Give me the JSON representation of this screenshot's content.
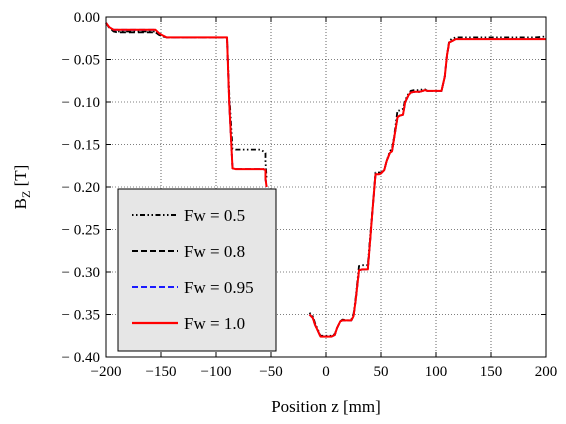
{
  "chart_data": {
    "type": "line",
    "xlabel": "Position z [mm]",
    "ylabel_main": "B",
    "ylabel_sub": "Z",
    "ylabel_unit": " [T]",
    "xlim": [
      -200,
      200
    ],
    "ylim": [
      -0.4,
      0.0
    ],
    "xticks": [
      -200,
      -150,
      -100,
      -50,
      0,
      50,
      100,
      150,
      200
    ],
    "xtick_labels": [
      "−200",
      "−150",
      "−100",
      "−50",
      "0",
      "50",
      "100",
      "150",
      "200"
    ],
    "yticks": [
      0.0,
      -0.05,
      -0.1,
      -0.15,
      -0.2,
      -0.25,
      -0.3,
      -0.35,
      -0.4
    ],
    "ytick_labels": [
      "0.00",
      "− 0.05",
      "− 0.10",
      "− 0.15",
      "− 0.20",
      "− 0.25",
      "− 0.30",
      "− 0.35",
      "− 0.40"
    ],
    "grid": true,
    "legend_position": "lower-left",
    "series": [
      {
        "name": "Fw = 0.5",
        "color": "#000000",
        "dash": "dashdotdot",
        "x": [
          -200,
          -197,
          -193,
          -190,
          -180,
          -155,
          -152,
          -148,
          -145,
          -140,
          -110,
          -95,
          -90,
          -88,
          -85,
          -82,
          -78,
          -60,
          -57,
          -55,
          -55,
          -54
        ],
        "y": [
          -0.007,
          -0.012,
          -0.016,
          -0.017,
          -0.017,
          -0.017,
          -0.02,
          -0.023,
          -0.024,
          -0.024,
          -0.024,
          -0.024,
          -0.024,
          -0.09,
          -0.155,
          -0.156,
          -0.156,
          -0.156,
          -0.158,
          -0.16,
          -0.17,
          -0.19
        ]
      },
      {
        "name": "Fw = 0.8",
        "color": "#000000",
        "dash": "dashed",
        "x": [
          -200,
          -197,
          -193,
          -190,
          -180,
          -155,
          -152,
          -148,
          -145,
          -140,
          -110,
          -95,
          -90,
          -88,
          -85,
          -82,
          -78,
          -60,
          -57,
          -55,
          -55,
          -54
        ],
        "y": [
          -0.007,
          -0.013,
          -0.017,
          -0.018,
          -0.018,
          -0.018,
          -0.021,
          -0.023,
          -0.024,
          -0.024,
          -0.024,
          -0.024,
          -0.024,
          -0.1,
          -0.178,
          -0.179,
          -0.179,
          -0.179,
          -0.179,
          -0.18,
          -0.19,
          -0.2
        ]
      },
      {
        "name": "Fw = 0.95",
        "color": "#1a1aff",
        "dash": "dashed",
        "x": [
          -200,
          -197,
          -193,
          -190,
          -180,
          -155,
          -152,
          -148,
          -145,
          -140,
          -110,
          -95,
          -90,
          -88,
          -85,
          -82,
          -78,
          -60,
          -57,
          -55,
          -55,
          -54
        ],
        "y": [
          -0.007,
          -0.012,
          -0.015,
          -0.015,
          -0.015,
          -0.015,
          -0.019,
          -0.022,
          -0.024,
          -0.024,
          -0.024,
          -0.024,
          -0.024,
          -0.1,
          -0.178,
          -0.179,
          -0.179,
          -0.179,
          -0.179,
          -0.18,
          -0.19,
          -0.2
        ]
      },
      {
        "name": "Fw = 1.0",
        "color": "#ff0000",
        "dash": "solid",
        "x": [
          -200,
          -197,
          -193,
          -190,
          -180,
          -155,
          -152,
          -148,
          -145,
          -140,
          -110,
          -95,
          -90,
          -88,
          -85,
          -82,
          -78,
          -60,
          -57,
          -55,
          -55,
          -54
        ],
        "y": [
          -0.007,
          -0.012,
          -0.015,
          -0.015,
          -0.015,
          -0.015,
          -0.019,
          -0.022,
          -0.024,
          -0.024,
          -0.024,
          -0.024,
          -0.024,
          -0.1,
          -0.178,
          -0.179,
          -0.179,
          -0.179,
          -0.179,
          -0.18,
          -0.19,
          -0.2
        ]
      },
      {
        "name": "",
        "color": "#000000",
        "dash": "dashdotdot",
        "x": [
          -15,
          -12,
          -10,
          -5,
          0,
          5,
          8,
          10,
          13,
          15,
          20,
          23,
          25,
          27,
          30,
          33,
          35,
          38,
          40,
          42,
          45,
          46,
          48,
          50,
          53,
          55,
          58,
          60,
          62,
          65,
          67,
          70,
          72,
          75,
          77,
          80,
          82,
          85,
          88,
          90,
          92,
          95,
          100,
          105,
          108,
          110,
          112,
          115,
          118,
          120,
          125,
          130,
          140,
          150,
          170,
          190,
          200
        ],
        "y": [
          -0.348,
          -0.352,
          -0.36,
          -0.375,
          -0.375,
          -0.375,
          -0.373,
          -0.366,
          -0.358,
          -0.356,
          -0.357,
          -0.356,
          -0.35,
          -0.33,
          -0.293,
          -0.292,
          -0.292,
          -0.292,
          -0.26,
          -0.23,
          -0.183,
          -0.183,
          -0.183,
          -0.183,
          -0.18,
          -0.17,
          -0.158,
          -0.155,
          -0.14,
          -0.11,
          -0.11,
          -0.108,
          -0.098,
          -0.09,
          -0.087,
          -0.086,
          -0.086,
          -0.086,
          -0.085,
          -0.085,
          -0.087,
          -0.087,
          -0.087,
          -0.087,
          -0.07,
          -0.045,
          -0.028,
          -0.025,
          -0.024,
          -0.024,
          -0.024,
          -0.024,
          -0.024,
          -0.024,
          -0.024,
          -0.024,
          -0.023
        ]
      },
      {
        "name": "",
        "color": "#000000",
        "dash": "dashed",
        "x": [
          -15,
          -12,
          -10,
          -5,
          0,
          5,
          8,
          10,
          13,
          15,
          20,
          23,
          25,
          27,
          30,
          33,
          35,
          38,
          40,
          42,
          45,
          46,
          48,
          50,
          53,
          55,
          58,
          60,
          62,
          65,
          67,
          70,
          72,
          75,
          77,
          80,
          82,
          85,
          88,
          90,
          92,
          95,
          100,
          105,
          108,
          110,
          112,
          115,
          118,
          120,
          125,
          130,
          140,
          150,
          170,
          190,
          200
        ],
        "y": [
          -0.35,
          -0.354,
          -0.362,
          -0.376,
          -0.376,
          -0.376,
          -0.374,
          -0.366,
          -0.358,
          -0.357,
          -0.357,
          -0.357,
          -0.352,
          -0.333,
          -0.298,
          -0.297,
          -0.297,
          -0.297,
          -0.265,
          -0.232,
          -0.185,
          -0.185,
          -0.185,
          -0.184,
          -0.18,
          -0.17,
          -0.16,
          -0.158,
          -0.142,
          -0.118,
          -0.116,
          -0.115,
          -0.1,
          -0.092,
          -0.089,
          -0.088,
          -0.088,
          -0.088,
          -0.087,
          -0.086,
          -0.087,
          -0.087,
          -0.087,
          -0.087,
          -0.07,
          -0.045,
          -0.03,
          -0.028,
          -0.026,
          -0.026,
          -0.026,
          -0.026,
          -0.026,
          -0.026,
          -0.026,
          -0.026,
          -0.026
        ]
      },
      {
        "name": "",
        "color": "#1a1aff",
        "dash": "dashed",
        "x": [
          -15,
          -12,
          -10,
          -5,
          0,
          5,
          8,
          10,
          13,
          15,
          20,
          23,
          25,
          27,
          30,
          33,
          35,
          38,
          40,
          42,
          45,
          46,
          48,
          50,
          53,
          55,
          58,
          60,
          62,
          65,
          67,
          70,
          72,
          75,
          77,
          80,
          82,
          85,
          88,
          90,
          92,
          95,
          100,
          105,
          108,
          110,
          112,
          115,
          118,
          120,
          125,
          130,
          140,
          150,
          170,
          190,
          200
        ],
        "y": [
          -0.35,
          -0.354,
          -0.362,
          -0.376,
          -0.376,
          -0.376,
          -0.374,
          -0.366,
          -0.358,
          -0.357,
          -0.357,
          -0.357,
          -0.352,
          -0.333,
          -0.298,
          -0.297,
          -0.297,
          -0.297,
          -0.265,
          -0.232,
          -0.185,
          -0.185,
          -0.185,
          -0.184,
          -0.18,
          -0.17,
          -0.16,
          -0.158,
          -0.142,
          -0.118,
          -0.116,
          -0.115,
          -0.1,
          -0.092,
          -0.089,
          -0.088,
          -0.088,
          -0.088,
          -0.087,
          -0.086,
          -0.087,
          -0.087,
          -0.087,
          -0.087,
          -0.07,
          -0.045,
          -0.03,
          -0.028,
          -0.026,
          -0.026,
          -0.026,
          -0.026,
          -0.026,
          -0.026,
          -0.026,
          -0.026,
          -0.026
        ]
      },
      {
        "name": "",
        "color": "#ff0000",
        "dash": "solid",
        "x": [
          -15,
          -12,
          -10,
          -5,
          0,
          5,
          8,
          10,
          13,
          15,
          20,
          23,
          25,
          27,
          30,
          33,
          35,
          38,
          40,
          42,
          45,
          46,
          48,
          50,
          53,
          55,
          58,
          60,
          62,
          65,
          67,
          70,
          72,
          75,
          77,
          80,
          82,
          85,
          88,
          90,
          92,
          95,
          100,
          105,
          108,
          110,
          112,
          115,
          118,
          120,
          125,
          130,
          140,
          150,
          170,
          190,
          200
        ],
        "y": [
          -0.35,
          -0.354,
          -0.362,
          -0.376,
          -0.376,
          -0.376,
          -0.374,
          -0.366,
          -0.358,
          -0.357,
          -0.357,
          -0.357,
          -0.352,
          -0.333,
          -0.298,
          -0.297,
          -0.297,
          -0.297,
          -0.265,
          -0.232,
          -0.185,
          -0.185,
          -0.185,
          -0.184,
          -0.18,
          -0.17,
          -0.16,
          -0.158,
          -0.142,
          -0.118,
          -0.116,
          -0.115,
          -0.1,
          -0.092,
          -0.089,
          -0.088,
          -0.088,
          -0.088,
          -0.087,
          -0.086,
          -0.087,
          -0.087,
          -0.087,
          -0.087,
          -0.07,
          -0.045,
          -0.03,
          -0.028,
          -0.026,
          -0.026,
          -0.026,
          -0.026,
          -0.026,
          -0.026,
          -0.026,
          -0.026,
          -0.026
        ]
      }
    ],
    "legend": [
      {
        "label": "Fw = 0.5",
        "color": "#000000",
        "dash": "dashdotdot"
      },
      {
        "label": "Fw = 0.8",
        "color": "#000000",
        "dash": "dashed"
      },
      {
        "label": "Fw = 0.95",
        "color": "#1a1aff",
        "dash": "dashed"
      },
      {
        "label": "Fw = 1.0",
        "color": "#ff0000",
        "dash": "solid"
      }
    ]
  }
}
